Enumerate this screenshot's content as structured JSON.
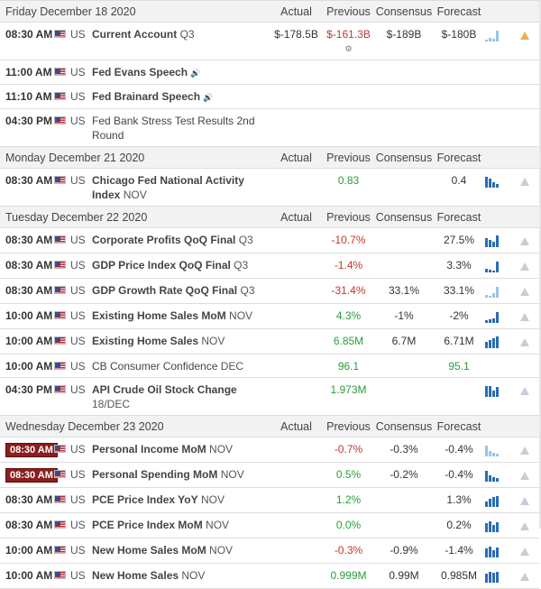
{
  "columns": {
    "actual": "Actual",
    "previous": "Previous",
    "consensus": "Consensus",
    "forecast": "Forecast"
  },
  "colors": {
    "red": "#c0392b",
    "green": "#2a9d3a",
    "bar": "#2a6cb5",
    "badge": "#8b1e1e"
  },
  "days": [
    {
      "date": "Friday December 18 2020",
      "events": [
        {
          "time": "08:30 AM",
          "country": "US",
          "name": "Current Account",
          "period": "Q3",
          "bold": true,
          "actual": "$-178.5B",
          "previous": "$-161.3B",
          "prev_color": "red",
          "prev_revised": true,
          "consensus": "$-189B",
          "forecast": "$-180B",
          "spark": [
            2,
            4,
            3,
            12
          ],
          "spark_light": true,
          "alert_on": true
        },
        {
          "time": "11:00 AM",
          "country": "US",
          "name": "Fed Evans Speech",
          "period": "",
          "bold": true,
          "speaker": true
        },
        {
          "time": "11:10 AM",
          "country": "US",
          "name": "Fed Brainard Speech",
          "period": "",
          "bold": true,
          "speaker": true
        },
        {
          "time": "04:30 PM",
          "country": "US",
          "name": "Fed Bank Stress Test Results 2nd Round",
          "period": "",
          "bold": false
        }
      ]
    },
    {
      "date": "Monday December 21 2020",
      "events": [
        {
          "time": "08:30 AM",
          "country": "US",
          "name": "Chicago Fed National Activity Index",
          "period": "NOV",
          "bold": true,
          "previous": "0.83",
          "prev_color": "green",
          "forecast": "0.4",
          "spark": [
            12,
            10,
            6,
            4
          ],
          "alert_on": false
        }
      ]
    },
    {
      "date": "Tuesday December 22 2020",
      "events": [
        {
          "time": "08:30 AM",
          "country": "US",
          "name": "Corporate Profits QoQ Final",
          "period": "Q3",
          "bold": true,
          "previous": "-10.7%",
          "prev_color": "red",
          "forecast": "27.5%",
          "spark": [
            10,
            8,
            6,
            13
          ],
          "alert_on": false
        },
        {
          "time": "08:30 AM",
          "country": "US",
          "name": "GDP Price Index QoQ Final",
          "period": "Q3",
          "bold": true,
          "previous": "-1.4%",
          "prev_color": "red",
          "forecast": "3.3%",
          "spark": [
            4,
            3,
            2,
            12
          ],
          "alert_on": false
        },
        {
          "time": "08:30 AM",
          "country": "US",
          "name": "GDP Growth Rate QoQ Final",
          "period": "Q3",
          "bold": true,
          "previous": "-31.4%",
          "prev_color": "red",
          "consensus": "33.1%",
          "forecast": "33.1%",
          "spark": [
            3,
            2,
            5,
            12
          ],
          "spark_light": true,
          "alert_on": false
        },
        {
          "time": "10:00 AM",
          "country": "US",
          "name": "Existing Home Sales MoM",
          "period": "NOV",
          "bold": true,
          "previous": "4.3%",
          "prev_color": "green",
          "consensus": "-1%",
          "forecast": "-2%",
          "spark": [
            3,
            4,
            5,
            12
          ],
          "alert_on": false
        },
        {
          "time": "10:00 AM",
          "country": "US",
          "name": "Existing Home Sales",
          "period": "NOV",
          "bold": true,
          "previous": "6.85M",
          "prev_color": "green",
          "consensus": "6.7M",
          "forecast": "6.71M",
          "spark": [
            7,
            9,
            11,
            13
          ],
          "alert_on": false
        },
        {
          "time": "10:00 AM",
          "country": "US",
          "name": "CB Consumer Confidence",
          "period": "DEC",
          "bold": false,
          "previous": "96.1",
          "prev_color": "green",
          "forecast": "95.1",
          "forecast_color": "green"
        },
        {
          "time": "04:30 PM",
          "country": "US",
          "name": "API Crude Oil Stock Change",
          "period": "18/DEC",
          "bold": true,
          "previous": "1.973M",
          "prev_color": "green",
          "spark": [
            12,
            12,
            7,
            11
          ],
          "alert_on": false
        }
      ]
    },
    {
      "date": "Wednesday December 23 2020",
      "events": [
        {
          "time": "08:30 AM",
          "country": "US",
          "name": "Personal Income MoM",
          "period": "NOV",
          "bold": true,
          "time_badge": true,
          "previous": "-0.7%",
          "prev_color": "red",
          "consensus": "-0.3%",
          "forecast": "-0.4%",
          "spark": [
            12,
            6,
            4,
            3
          ],
          "spark_light": true,
          "alert_on": false
        },
        {
          "time": "08:30 AM",
          "country": "US",
          "name": "Personal Spending MoM",
          "period": "NOV",
          "bold": true,
          "time_badge": true,
          "previous": "0.5%",
          "prev_color": "green",
          "consensus": "-0.2%",
          "forecast": "-0.4%",
          "spark": [
            12,
            7,
            5,
            4
          ],
          "alert_on": false
        },
        {
          "time": "08:30 AM",
          "country": "US",
          "name": "PCE Price Index YoY",
          "period": "NOV",
          "bold": true,
          "previous": "1.2%",
          "prev_color": "green",
          "forecast": "1.3%",
          "spark": [
            6,
            9,
            11,
            12
          ],
          "alert_on": false
        },
        {
          "time": "08:30 AM",
          "country": "US",
          "name": "PCE Price Index MoM",
          "period": "NOV",
          "bold": true,
          "previous": "0.0%",
          "prev_color": "green",
          "forecast": "0.2%",
          "spark": [
            10,
            12,
            8,
            11
          ],
          "alert_on": false
        },
        {
          "time": "10:00 AM",
          "country": "US",
          "name": "New Home Sales MoM",
          "period": "NOV",
          "bold": true,
          "previous": "-0.3%",
          "prev_color": "red",
          "consensus": "-0.9%",
          "forecast": "-1.4%",
          "spark": [
            10,
            12,
            8,
            11
          ],
          "alert_on": false
        },
        {
          "time": "10:00 AM",
          "country": "US",
          "name": "New Home Sales",
          "period": "NOV",
          "bold": true,
          "previous": "0.999M",
          "prev_color": "green",
          "consensus": "0.99M",
          "forecast": "0.985M",
          "spark": [
            10,
            12,
            11,
            12
          ],
          "alert_on": false
        }
      ]
    }
  ]
}
